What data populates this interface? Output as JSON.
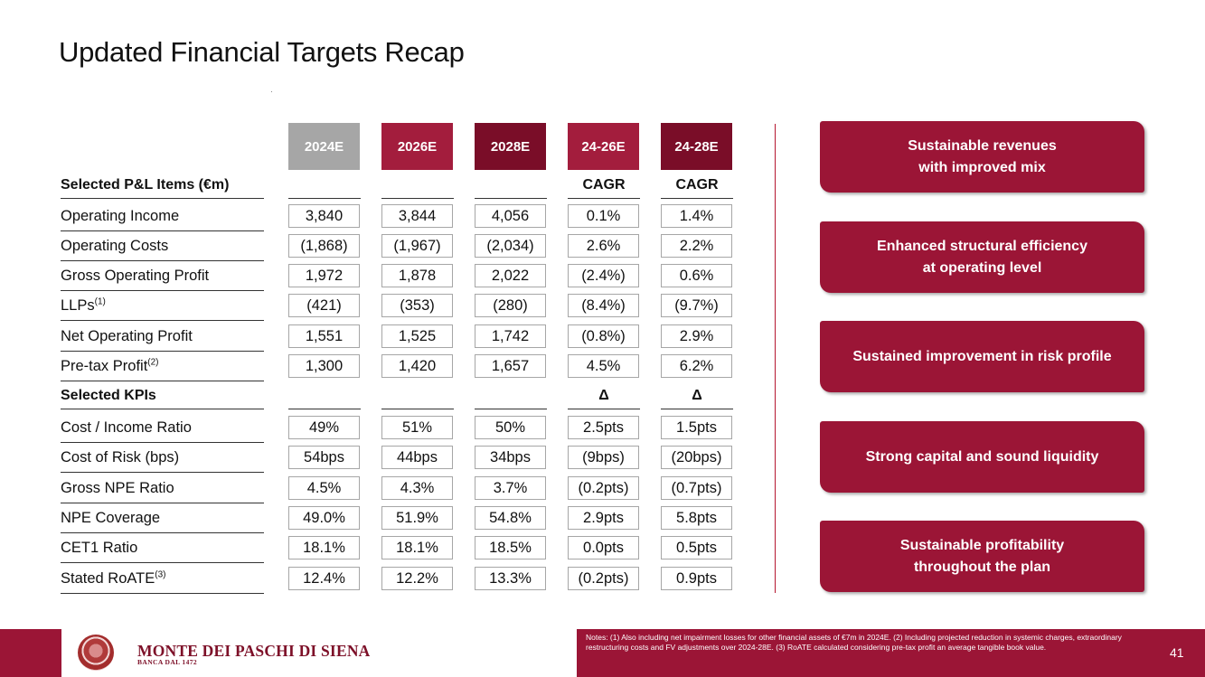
{
  "title": "Updated Financial Targets Recap",
  "columns": [
    {
      "label": "2024E",
      "color": "#a6a6a6"
    },
    {
      "label": "2026E",
      "color": "#a31d3d"
    },
    {
      "label": "2028E",
      "color": "#7a0d28"
    },
    {
      "label": "24-26E",
      "color": "#a31d3d"
    },
    {
      "label": "24-28E",
      "color": "#7a0d28"
    }
  ],
  "sections": {
    "pl": {
      "label": "Selected P&L Items (€m)",
      "sub_headers": [
        "CAGR",
        "CAGR"
      ]
    },
    "kpi": {
      "label": "Selected KPIs",
      "sub_headers": [
        "Δ",
        "Δ"
      ]
    }
  },
  "rows": [
    {
      "label": "Operating Income",
      "sup": "",
      "values": [
        "3,840",
        "3,844",
        "4,056",
        "0.1%",
        "1.4%"
      ]
    },
    {
      "label": "Operating Costs",
      "sup": "",
      "values": [
        "(1,868)",
        "(1,967)",
        "(2,034)",
        "2.6%",
        "2.2%"
      ]
    },
    {
      "label": "Gross Operating Profit",
      "sup": "",
      "values": [
        "1,972",
        "1,878",
        "2,022",
        "(2.4%)",
        "0.6%"
      ]
    },
    {
      "label": "LLPs",
      "sup": "(1)",
      "values": [
        "(421)",
        "(353)",
        "(280)",
        "(8.4%)",
        "(9.7%)"
      ]
    },
    {
      "label": "Net Operating Profit",
      "sup": "",
      "values": [
        "1,551",
        "1,525",
        "1,742",
        "(0.8%)",
        "2.9%"
      ]
    },
    {
      "label": "Pre-tax Profit",
      "sup": "(2)",
      "values": [
        "1,300",
        "1,420",
        "1,657",
        "4.5%",
        "6.2%"
      ]
    },
    {
      "label": "Cost / Income Ratio",
      "sup": "",
      "values": [
        "49%",
        "51%",
        "50%",
        "2.5pts",
        "1.5pts"
      ]
    },
    {
      "label": "Cost of Risk (bps)",
      "sup": "",
      "values": [
        "54bps",
        "44bps",
        "34bps",
        "(9bps)",
        "(20bps)"
      ]
    },
    {
      "label": "Gross NPE Ratio",
      "sup": "",
      "values": [
        "4.5%",
        "4.3%",
        "3.7%",
        "(0.2pts)",
        "(0.7pts)"
      ]
    },
    {
      "label": "NPE Coverage",
      "sup": "",
      "values": [
        "49.0%",
        "51.9%",
        "54.8%",
        "2.9pts",
        "5.8pts"
      ]
    },
    {
      "label": "CET1 Ratio",
      "sup": "",
      "values": [
        "18.1%",
        "18.1%",
        "18.5%",
        "0.0pts",
        "0.5pts"
      ]
    },
    {
      "label": "Stated RoATE",
      "sup": "(3)",
      "values": [
        "12.4%",
        "12.2%",
        "13.3%",
        "(0.2pts)",
        "0.9pts"
      ]
    }
  ],
  "highlights": [
    "Sustainable revenues\nwith improved mix",
    "Enhanced structural efficiency\nat operating level",
    "Sustained improvement in risk profile",
    "Strong capital and sound liquidity",
    "Sustainable profitability\nthroughout the plan"
  ],
  "footer": {
    "bank_name": "MONTE DEI PASCHI DI SIENA",
    "bank_sub": "BANCA DAL 1472",
    "notes": "Notes: (1) Also including net impairment losses for other financial assets of €7m in 2024E. (2) Including projected reduction in systemic charges, extraordinary restructuring costs and FV adjustments over 2024-28E. (3) RoATE calculated considering pre-tax profit an average tangible book value.",
    "page_number": "41"
  },
  "colors": {
    "brand": "#9b1536"
  }
}
